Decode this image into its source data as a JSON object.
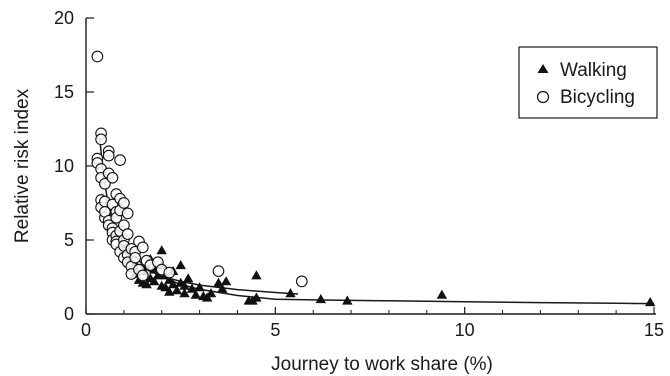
{
  "chart_data": {
    "type": "scatter",
    "xlabel": "Journey to work share (%)",
    "ylabel": "Relative risk index",
    "xlim": [
      0,
      15
    ],
    "ylim": [
      0,
      20
    ],
    "x_ticks": [
      "0",
      "5",
      "10",
      "15"
    ],
    "y_ticks": [
      "0",
      "5",
      "10",
      "15",
      "20"
    ],
    "grid": false,
    "legend_position": "top-right",
    "series": [
      {
        "name": "Walking",
        "marker": "filled-triangle",
        "color": "#111111",
        "points": [
          [
            0.9,
            5.3
          ],
          [
            1.0,
            4.4
          ],
          [
            1.1,
            4.0
          ],
          [
            1.2,
            3.5
          ],
          [
            1.3,
            2.7
          ],
          [
            1.3,
            3.1
          ],
          [
            1.4,
            2.3
          ],
          [
            1.5,
            2.1
          ],
          [
            1.5,
            2.9
          ],
          [
            1.6,
            3.2
          ],
          [
            1.6,
            2.0
          ],
          [
            1.7,
            3.7
          ],
          [
            1.7,
            2.4
          ],
          [
            1.8,
            3.0
          ],
          [
            1.8,
            2.2
          ],
          [
            1.9,
            2.6
          ],
          [
            2.0,
            4.3
          ],
          [
            2.0,
            3.3
          ],
          [
            2.0,
            1.9
          ],
          [
            2.1,
            2.6
          ],
          [
            2.1,
            1.8
          ],
          [
            2.2,
            1.5
          ],
          [
            2.2,
            2.3
          ],
          [
            2.3,
            2.9
          ],
          [
            2.3,
            2.0
          ],
          [
            2.4,
            1.6
          ],
          [
            2.5,
            3.3
          ],
          [
            2.5,
            2.1
          ],
          [
            2.6,
            1.4
          ],
          [
            2.6,
            1.9
          ],
          [
            2.7,
            2.4
          ],
          [
            2.8,
            1.7
          ],
          [
            2.9,
            1.3
          ],
          [
            3.0,
            1.8
          ],
          [
            3.1,
            1.2
          ],
          [
            3.2,
            1.1
          ],
          [
            3.3,
            1.4
          ],
          [
            3.5,
            2.1
          ],
          [
            3.6,
            1.7
          ],
          [
            3.7,
            2.2
          ],
          [
            4.3,
            0.9
          ],
          [
            4.4,
            0.9
          ],
          [
            4.5,
            1.1
          ],
          [
            4.5,
            2.6
          ],
          [
            5.4,
            1.4
          ],
          [
            6.2,
            1.0
          ],
          [
            6.9,
            0.9
          ],
          [
            9.4,
            1.3
          ],
          [
            14.9,
            0.8
          ]
        ]
      },
      {
        "name": "Bicycling",
        "marker": "open-circle",
        "color": "#111111",
        "points": [
          [
            0.3,
            17.4
          ],
          [
            0.3,
            10.5
          ],
          [
            0.3,
            10.2
          ],
          [
            0.4,
            12.2
          ],
          [
            0.4,
            11.8
          ],
          [
            0.4,
            9.8
          ],
          [
            0.4,
            9.2
          ],
          [
            0.4,
            7.7
          ],
          [
            0.4,
            7.2
          ],
          [
            0.5,
            8.8
          ],
          [
            0.5,
            6.5
          ],
          [
            0.5,
            7.6
          ],
          [
            0.5,
            6.9
          ],
          [
            0.6,
            11.0
          ],
          [
            0.6,
            10.7
          ],
          [
            0.6,
            9.5
          ],
          [
            0.6,
            6.3
          ],
          [
            0.6,
            6.0
          ],
          [
            0.7,
            9.2
          ],
          [
            0.7,
            7.4
          ],
          [
            0.7,
            5.8
          ],
          [
            0.7,
            5.5
          ],
          [
            0.7,
            5.0
          ],
          [
            0.8,
            8.1
          ],
          [
            0.8,
            6.9
          ],
          [
            0.8,
            6.5
          ],
          [
            0.8,
            5.3
          ],
          [
            0.8,
            4.9
          ],
          [
            0.8,
            4.7
          ],
          [
            0.9,
            10.4
          ],
          [
            0.9,
            7.8
          ],
          [
            0.9,
            7.0
          ],
          [
            0.9,
            5.6
          ],
          [
            0.9,
            4.2
          ],
          [
            1.0,
            7.5
          ],
          [
            1.0,
            6.0
          ],
          [
            1.0,
            5.0
          ],
          [
            1.0,
            4.6
          ],
          [
            1.0,
            3.8
          ],
          [
            1.1,
            6.8
          ],
          [
            1.1,
            5.4
          ],
          [
            1.1,
            4.0
          ],
          [
            1.1,
            3.5
          ],
          [
            1.2,
            4.4
          ],
          [
            1.2,
            3.2
          ],
          [
            1.2,
            2.7
          ],
          [
            1.3,
            4.2
          ],
          [
            1.3,
            3.8
          ],
          [
            1.4,
            4.9
          ],
          [
            1.4,
            3.0
          ],
          [
            1.5,
            4.5
          ],
          [
            1.5,
            2.6
          ],
          [
            1.6,
            3.6
          ],
          [
            1.7,
            3.3
          ],
          [
            1.9,
            3.5
          ],
          [
            2.0,
            3.0
          ],
          [
            2.2,
            2.8
          ],
          [
            3.5,
            2.9
          ],
          [
            5.7,
            2.2
          ]
        ]
      }
    ],
    "fitted_curves": [
      {
        "series": "Walking",
        "points": [
          [
            0.9,
            5.6
          ],
          [
            1.0,
            5.0
          ],
          [
            1.25,
            4.0
          ],
          [
            1.5,
            3.33
          ],
          [
            2.0,
            2.5
          ],
          [
            2.5,
            2.0
          ],
          [
            3.0,
            1.67
          ],
          [
            4.0,
            1.25
          ],
          [
            5.0,
            1.0
          ],
          [
            6.0,
            0.95
          ],
          [
            7.0,
            0.92
          ],
          [
            8.0,
            0.89
          ],
          [
            9.0,
            0.86
          ],
          [
            10.0,
            0.83
          ],
          [
            12.0,
            0.77
          ],
          [
            14.0,
            0.72
          ],
          [
            15.0,
            0.7
          ]
        ]
      },
      {
        "series": "Bicycling",
        "points": [
          [
            0.35,
            12.2
          ],
          [
            0.45,
            9.6
          ],
          [
            0.55,
            8.0
          ],
          [
            0.7,
            6.3
          ],
          [
            0.85,
            5.2
          ],
          [
            1.0,
            4.4
          ],
          [
            1.25,
            3.6
          ],
          [
            1.5,
            3.1
          ],
          [
            2.0,
            2.55
          ],
          [
            2.5,
            2.2
          ],
          [
            3.0,
            1.95
          ],
          [
            4.0,
            1.65
          ],
          [
            5.0,
            1.45
          ],
          [
            5.6,
            1.35
          ]
        ]
      }
    ]
  }
}
